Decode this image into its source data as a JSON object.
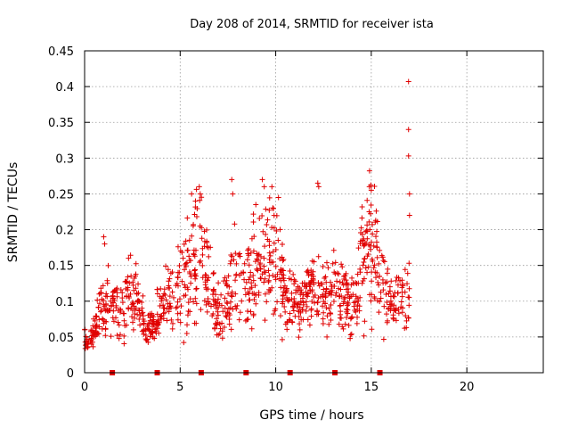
{
  "chart_data": {
    "type": "scatter",
    "title": "Day 208 of 2014, SRMTID for receiver ista",
    "xlabel": "GPS time / hours",
    "ylabel": "SRMTID / TECUs",
    "xlim": [
      0,
      24
    ],
    "ylim": [
      0,
      0.45
    ],
    "x_ticks": [
      0,
      5,
      10,
      15,
      20
    ],
    "x_tick_labels": [
      "0",
      "5",
      "10",
      "15",
      "20"
    ],
    "y_ticks": [
      0,
      0.05,
      0.1,
      0.15,
      0.2,
      0.25,
      0.3,
      0.35,
      0.4,
      0.45
    ],
    "y_tick_labels": [
      "0",
      "0.05",
      "0.1",
      "0.15",
      "0.2",
      "0.25",
      "0.3",
      "0.35",
      "0.4",
      "0.45"
    ],
    "grid": true,
    "marker": "+",
    "color": "#e00000",
    "data_gaps_x": [
      1.45,
      3.8,
      6.1,
      8.45,
      10.75,
      13.1,
      15.45
    ],
    "series": [
      {
        "name": "SRMTID",
        "anchors": [
          {
            "x": 0.0,
            "y": 0.05
          },
          {
            "x": 0.2,
            "y": 0.04
          },
          {
            "x": 0.5,
            "y": 0.06
          },
          {
            "x": 0.8,
            "y": 0.09
          },
          {
            "x": 1.2,
            "y": 0.1
          },
          {
            "x": 1.8,
            "y": 0.09
          },
          {
            "x": 2.3,
            "y": 0.11
          },
          {
            "x": 2.8,
            "y": 0.1
          },
          {
            "x": 3.2,
            "y": 0.06
          },
          {
            "x": 3.6,
            "y": 0.07
          },
          {
            "x": 4.0,
            "y": 0.09
          },
          {
            "x": 4.5,
            "y": 0.11
          },
          {
            "x": 5.0,
            "y": 0.12
          },
          {
            "x": 5.5,
            "y": 0.15
          },
          {
            "x": 6.0,
            "y": 0.17
          },
          {
            "x": 6.5,
            "y": 0.12
          },
          {
            "x": 7.0,
            "y": 0.08
          },
          {
            "x": 7.5,
            "y": 0.1
          },
          {
            "x": 8.0,
            "y": 0.14
          },
          {
            "x": 8.5,
            "y": 0.12
          },
          {
            "x": 9.0,
            "y": 0.14
          },
          {
            "x": 9.5,
            "y": 0.16
          },
          {
            "x": 10.0,
            "y": 0.17
          },
          {
            "x": 10.5,
            "y": 0.1
          },
          {
            "x": 11.0,
            "y": 0.09
          },
          {
            "x": 11.5,
            "y": 0.1
          },
          {
            "x": 12.0,
            "y": 0.12
          },
          {
            "x": 12.5,
            "y": 0.1
          },
          {
            "x": 13.0,
            "y": 0.12
          },
          {
            "x": 13.5,
            "y": 0.11
          },
          {
            "x": 14.0,
            "y": 0.1
          },
          {
            "x": 14.5,
            "y": 0.16
          },
          {
            "x": 15.0,
            "y": 0.17
          },
          {
            "x": 15.5,
            "y": 0.14
          },
          {
            "x": 16.0,
            "y": 0.1
          },
          {
            "x": 16.5,
            "y": 0.1
          },
          {
            "x": 17.0,
            "y": 0.1
          }
        ],
        "spikes": [
          {
            "x": 1.0,
            "y": 0.19
          },
          {
            "x": 1.05,
            "y": 0.18
          },
          {
            "x": 5.6,
            "y": 0.25
          },
          {
            "x": 5.8,
            "y": 0.24
          },
          {
            "x": 6.0,
            "y": 0.26
          },
          {
            "x": 6.05,
            "y": 0.25
          },
          {
            "x": 7.7,
            "y": 0.27
          },
          {
            "x": 7.75,
            "y": 0.25
          },
          {
            "x": 9.3,
            "y": 0.27
          },
          {
            "x": 9.4,
            "y": 0.26
          },
          {
            "x": 9.8,
            "y": 0.26
          },
          {
            "x": 12.2,
            "y": 0.265
          },
          {
            "x": 12.25,
            "y": 0.26
          },
          {
            "x": 14.9,
            "y": 0.26
          },
          {
            "x": 15.0,
            "y": 0.255
          },
          {
            "x": 16.95,
            "y": 0.407
          },
          {
            "x": 16.95,
            "y": 0.34
          },
          {
            "x": 16.95,
            "y": 0.303
          },
          {
            "x": 17.0,
            "y": 0.25
          },
          {
            "x": 17.0,
            "y": 0.22
          }
        ]
      }
    ]
  }
}
